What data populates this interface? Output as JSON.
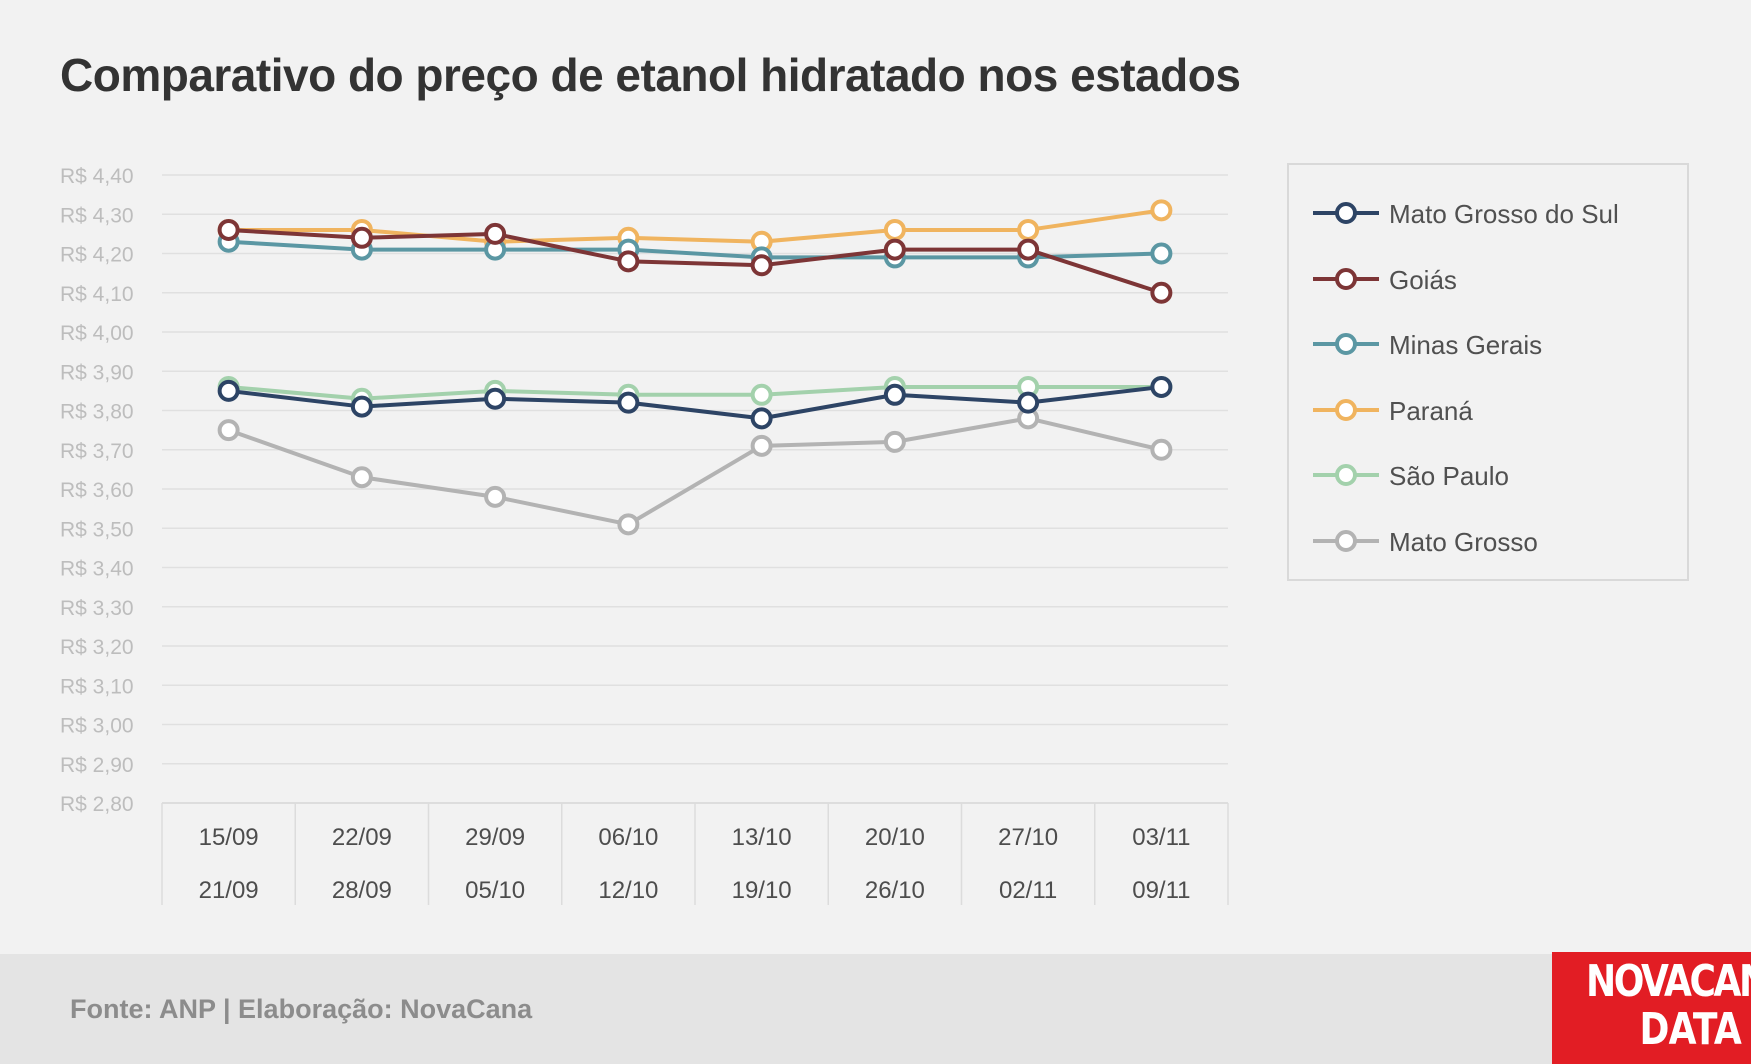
{
  "chart_data": {
    "type": "line",
    "title": "Comparativo do preço de etanol hidratado nos estados",
    "categories": [
      [
        "15/09",
        "21/09"
      ],
      [
        "22/09",
        "28/09"
      ],
      [
        "29/09",
        "05/10"
      ],
      [
        "06/10",
        "12/10"
      ],
      [
        "13/10",
        "19/10"
      ],
      [
        "20/10",
        "26/10"
      ],
      [
        "27/10",
        "02/11"
      ],
      [
        "03/11",
        "09/11"
      ]
    ],
    "ylim": [
      2.8,
      4.4
    ],
    "y_tick_values": [
      4.4,
      4.3,
      4.2,
      4.1,
      4.0,
      3.9,
      3.8,
      3.7,
      3.6,
      3.5,
      3.4,
      3.3,
      3.2,
      3.1,
      3.0,
      2.9,
      2.8
    ],
    "y_tick_labels": [
      "R$ 4,40",
      "R$ 4,30",
      "R$ 4,20",
      "R$ 4,10",
      "R$ 4,00",
      "R$ 3,90",
      "R$ 3,80",
      "R$ 3,70",
      "R$ 3,60",
      "R$ 3,50",
      "R$ 3,40",
      "R$ 3,30",
      "R$ 3,20",
      "R$ 3,10",
      "R$ 3,00",
      "R$ 2,90",
      "R$ 2,80"
    ],
    "grid": true,
    "legend_position": "right",
    "series": [
      {
        "name": "Mato Grosso",
        "color": "#b3b3b3",
        "values": [
          3.75,
          3.63,
          3.58,
          3.51,
          3.71,
          3.72,
          3.78,
          3.7
        ]
      },
      {
        "name": "São Paulo",
        "color": "#a3d1ac",
        "values": [
          3.86,
          3.83,
          3.85,
          3.84,
          3.84,
          3.86,
          3.86,
          3.86
        ]
      },
      {
        "name": "Paraná",
        "color": "#f0b45f",
        "values": [
          4.26,
          4.26,
          4.23,
          4.24,
          4.23,
          4.26,
          4.26,
          4.31
        ]
      },
      {
        "name": "Minas Gerais",
        "color": "#5b97a3",
        "values": [
          4.23,
          4.21,
          4.21,
          4.21,
          4.19,
          4.19,
          4.19,
          4.2
        ]
      },
      {
        "name": "Goiás",
        "color": "#7d3536",
        "values": [
          4.26,
          4.24,
          4.25,
          4.18,
          4.17,
          4.21,
          4.21,
          4.1
        ]
      },
      {
        "name": "Mato Grosso do Sul",
        "color": "#2d4465",
        "values": [
          3.85,
          3.81,
          3.83,
          3.82,
          3.78,
          3.84,
          3.82,
          3.86
        ]
      }
    ],
    "legend_order": [
      "Mato Grosso do Sul",
      "Goiás",
      "Minas Gerais",
      "Paraná",
      "São Paulo",
      "Mato Grosso"
    ]
  },
  "footer": {
    "source": "Fonte: ANP | Elaboração: NovaCana"
  },
  "logo": {
    "line1": "NOVACANA",
    "line2": "DATA",
    "color": "#e21d24"
  }
}
